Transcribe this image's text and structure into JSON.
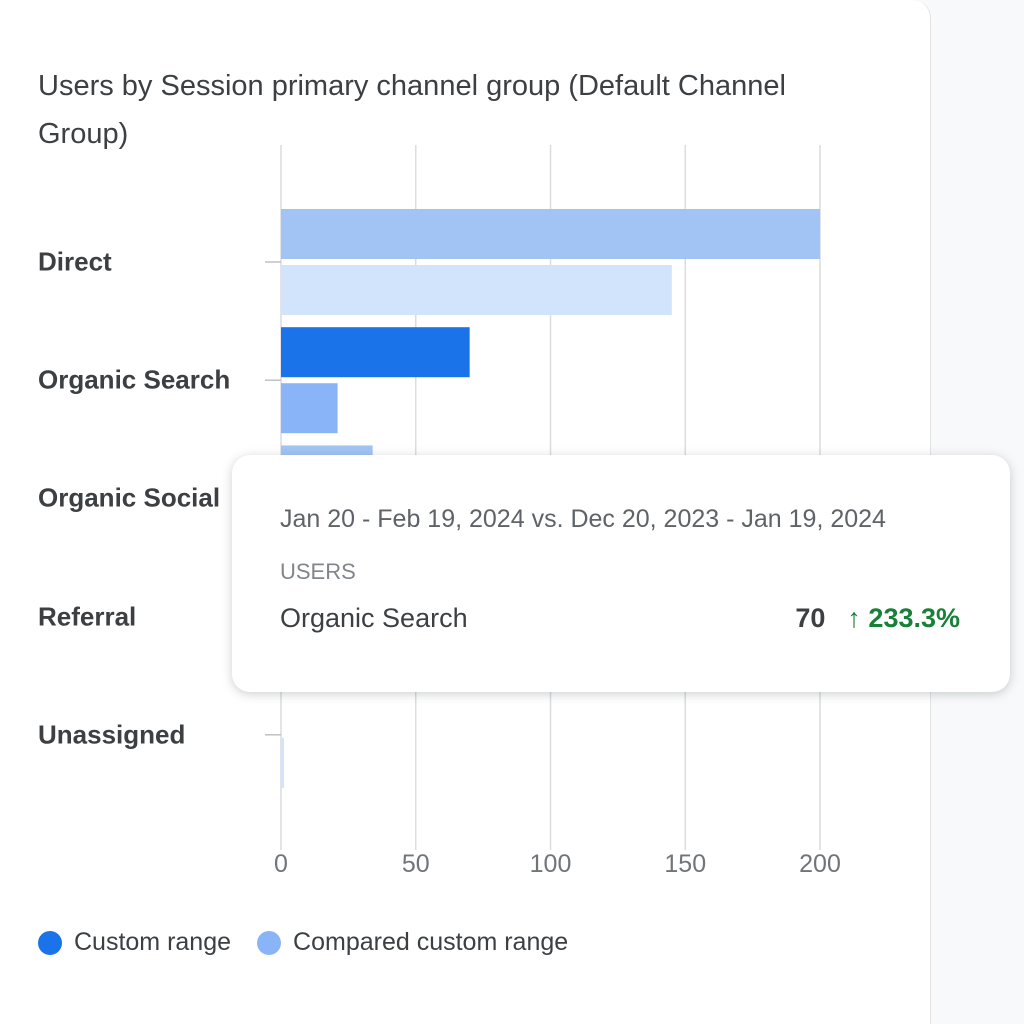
{
  "chart_data": {
    "type": "bar",
    "orientation": "horizontal",
    "title": "Users by Session primary channel group (Default Channel Group)",
    "categories": [
      "Direct",
      "Organic Search",
      "Organic Social",
      "Referral",
      "Unassigned"
    ],
    "series": [
      {
        "name": "Custom range",
        "values": [
          200,
          70,
          34,
          null,
          0
        ],
        "color": "#1a73e8"
      },
      {
        "name": "Compared custom range",
        "values": [
          145,
          21,
          null,
          null,
          1
        ],
        "color": "#8ab4f8"
      }
    ],
    "xlim": [
      0,
      200
    ],
    "xticks": [
      "0",
      "50",
      "100",
      "150",
      "200"
    ],
    "grid": true,
    "legend": "bottom-left",
    "highlighted_category": "Organic Search"
  },
  "tooltip": {
    "range": "Jan 20 - Feb 19, 2024 vs. Dec 20, 2023 - Jan 19, 2024",
    "metric": "USERS",
    "label": "Organic Search",
    "value": "70",
    "change": "233.3%",
    "change_icon": "arrow-up-icon",
    "change_color": "#188038"
  }
}
